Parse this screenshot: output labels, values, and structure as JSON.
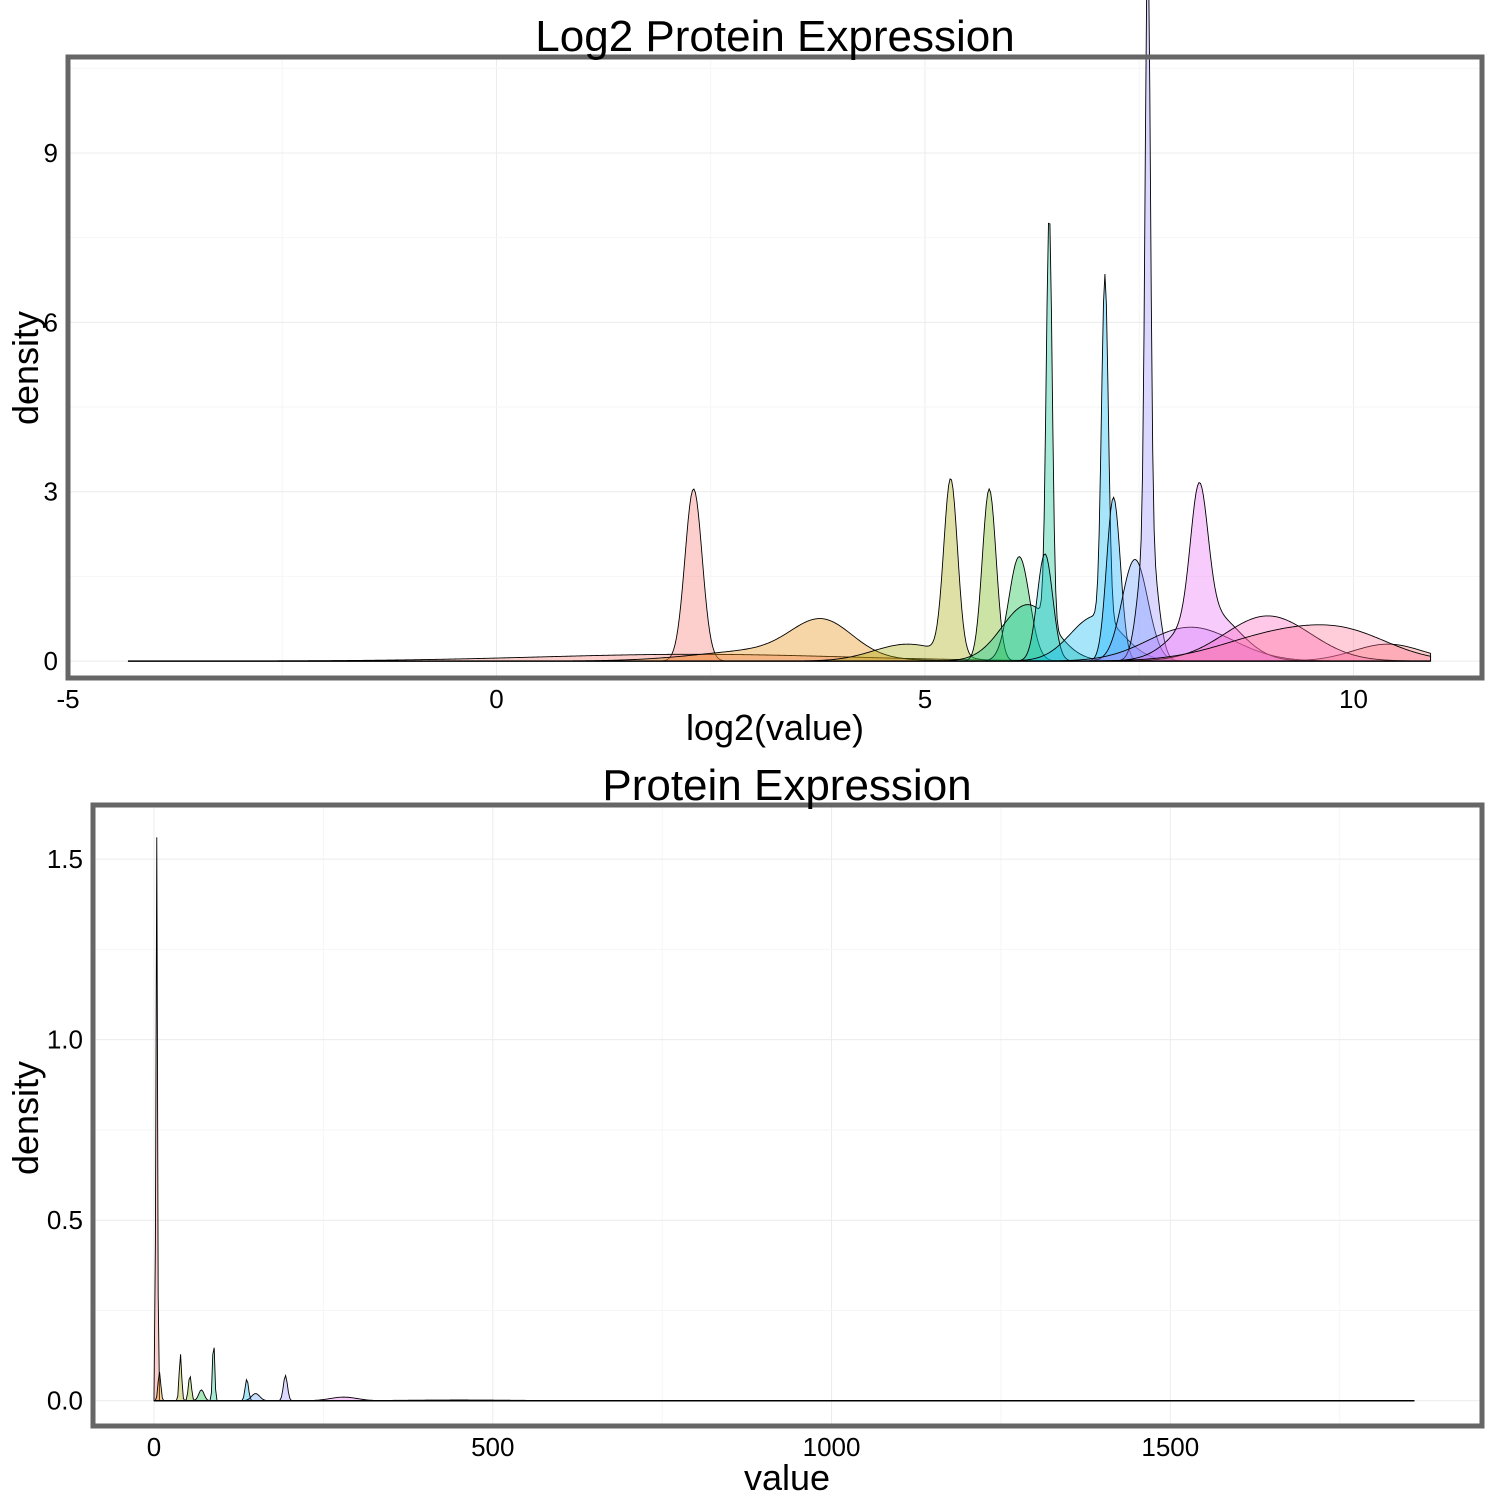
{
  "chart_data": [
    {
      "type": "area",
      "subtype": "density",
      "title": "Log2 Protein Expression",
      "xlabel": "log2(value)",
      "ylabel": "density",
      "xlim": [
        -5,
        11.5
      ],
      "ylim": [
        -0.3,
        10.7
      ],
      "xticks": [
        -5,
        0,
        5,
        10
      ],
      "xtick_labels": [
        "-5",
        "0",
        "5",
        "10"
      ],
      "yticks": [
        0,
        3,
        6,
        9
      ],
      "ytick_labels": [
        "0",
        "3",
        "6",
        "9"
      ],
      "grid": true,
      "legend": "none",
      "x_support": [
        -4.3,
        10.9
      ],
      "series": [
        {
          "color": "#F8766D",
          "peaks": [
            [
              2.3,
              3.05,
              0.1
            ]
          ]
        },
        {
          "color": "#F8766D",
          "peaks": [
            [
              2.3,
              0.12,
              1.8
            ],
            [
              10.4,
              0.3,
              0.4
            ]
          ]
        },
        {
          "color": "#E58700",
          "peaks": [
            [
              3.8,
              0.6,
              0.35
            ],
            [
              3.2,
              0.2,
              0.8
            ]
          ]
        },
        {
          "color": "#A3A500",
          "peaks": [
            [
              5.3,
              3.1,
              0.08
            ],
            [
              4.8,
              0.3,
              0.4
            ]
          ]
        },
        {
          "color": "#6BB100",
          "peaks": [
            [
              5.75,
              3.05,
              0.08
            ]
          ]
        },
        {
          "color": "#00BA38",
          "peaks": [
            [
              6.1,
              1.85,
              0.12
            ]
          ]
        },
        {
          "color": "#00C08B",
          "peaks": [
            [
              6.45,
              7.25,
              0.035
            ],
            [
              6.2,
              1.0,
              0.3
            ]
          ]
        },
        {
          "color": "#00BFC4",
          "peaks": [
            [
              6.4,
              1.9,
              0.09
            ]
          ]
        },
        {
          "color": "#00B4F0",
          "peaks": [
            [
              7.1,
              6.1,
              0.04
            ],
            [
              7.0,
              0.8,
              0.3
            ]
          ]
        },
        {
          "color": "#00A9FF",
          "peaks": [
            [
              7.2,
              2.9,
              0.08
            ]
          ]
        },
        {
          "color": "#619CFF",
          "peaks": [
            [
              7.45,
              1.8,
              0.15
            ]
          ]
        },
        {
          "color": "#9590FF",
          "peaks": [
            [
              7.6,
              10.6,
              0.03
            ],
            [
              7.6,
              2.4,
              0.1
            ]
          ]
        },
        {
          "color": "#C77CFF",
          "peaks": [
            [
              8.1,
              0.6,
              0.5
            ]
          ]
        },
        {
          "color": "#E76BF3",
          "peaks": [
            [
              8.2,
              2.3,
              0.1
            ],
            [
              8.3,
              0.9,
              0.35
            ]
          ]
        },
        {
          "color": "#FF62BC",
          "peaks": [
            [
              9.0,
              0.8,
              0.5
            ]
          ]
        },
        {
          "color": "#FF6C91",
          "peaks": [
            [
              9.2,
              0.5,
              0.7
            ],
            [
              10.0,
              0.3,
              0.5
            ]
          ]
        }
      ]
    },
    {
      "type": "area",
      "subtype": "density",
      "title": "Protein Expression",
      "xlabel": "value",
      "ylabel": "density",
      "xlim": [
        -90,
        1960
      ],
      "ylim": [
        -0.07,
        1.65
      ],
      "xticks": [
        0,
        500,
        1000,
        1500
      ],
      "xtick_labels": [
        "0",
        "500",
        "1000",
        "1500"
      ],
      "yticks": [
        0.0,
        0.5,
        1.0,
        1.5
      ],
      "ytick_labels": [
        "0.0",
        "0.5",
        "1.0",
        "1.5"
      ],
      "grid": true,
      "legend": "none",
      "x_support": [
        0,
        1860
      ],
      "series": [
        {
          "color": "#F8766D",
          "peaks": [
            [
              4,
              1.57,
              1.2
            ]
          ]
        },
        {
          "color": "#E58700",
          "peaks": [
            [
              8,
              0.08,
              2.0
            ]
          ]
        },
        {
          "color": "#A3A500",
          "peaks": [
            [
              39,
              0.13,
              1.8
            ]
          ]
        },
        {
          "color": "#6BB100",
          "peaks": [
            [
              53,
              0.07,
              2.2
            ]
          ]
        },
        {
          "color": "#00BA38",
          "peaks": [
            [
              70,
              0.03,
              4.0
            ]
          ]
        },
        {
          "color": "#00C08B",
          "peaks": [
            [
              88,
              0.17,
              1.6
            ]
          ]
        },
        {
          "color": "#00B4F0",
          "peaks": [
            [
              137,
              0.06,
              2.5
            ]
          ]
        },
        {
          "color": "#619CFF",
          "peaks": [
            [
              150,
              0.02,
              6.0
            ]
          ]
        },
        {
          "color": "#9590FF",
          "peaks": [
            [
              194,
              0.07,
              3.0
            ]
          ]
        },
        {
          "color": "#E76BF3",
          "peaks": [
            [
              280,
              0.01,
              20.0
            ]
          ]
        },
        {
          "color": "#FF62BC",
          "peaks": [
            [
              450,
              0.002,
              80.0
            ]
          ]
        }
      ]
    }
  ]
}
